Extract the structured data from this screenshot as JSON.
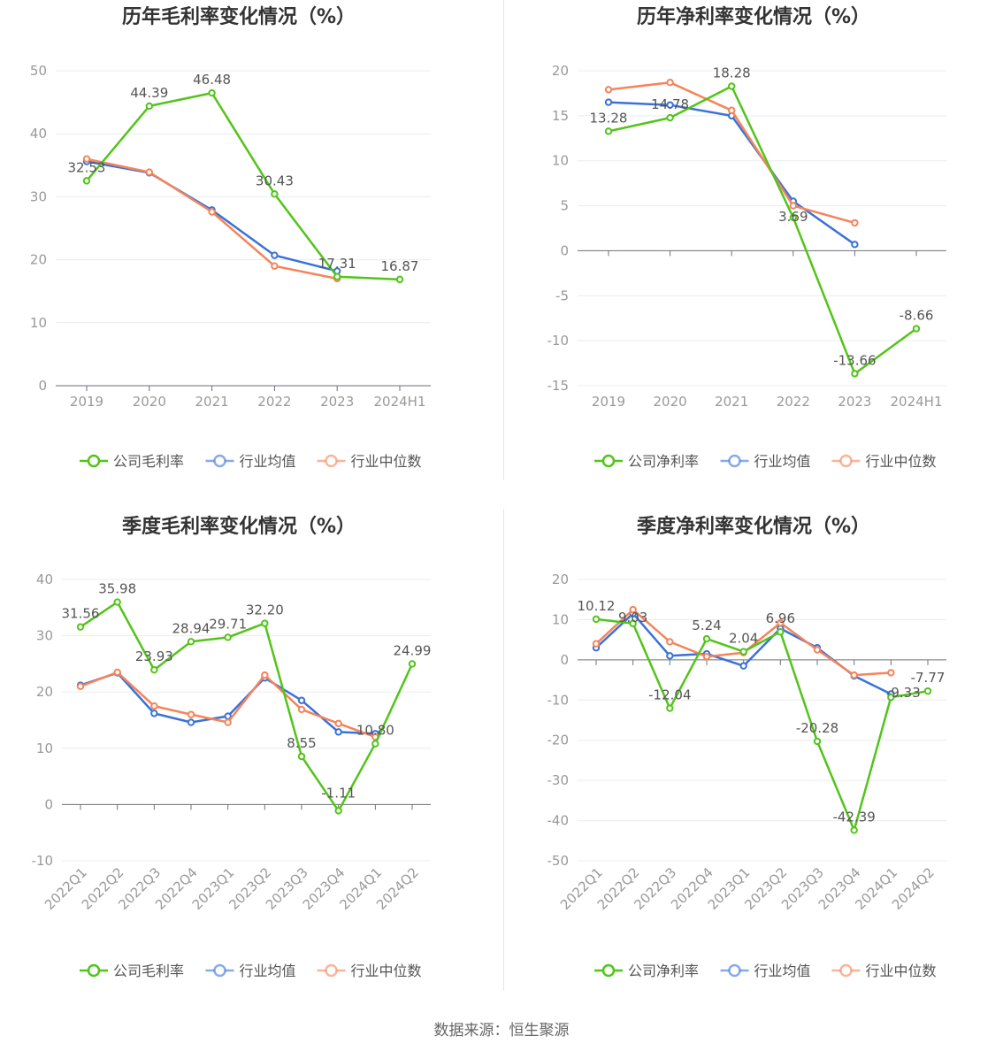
{
  "source_text": "数据来源：恒生聚源",
  "colors": {
    "company": "#52c41a",
    "avg": "#3a72d8",
    "median": "#f5845a"
  },
  "chart_data": [
    {
      "id": "annual-gross",
      "type": "line",
      "title": "历年毛利率变化情况（%）",
      "categories": [
        "2019",
        "2020",
        "2021",
        "2022",
        "2023",
        "2024H1"
      ],
      "ylim": [
        0,
        50
      ],
      "yticks": [
        0,
        10,
        20,
        30,
        40,
        50
      ],
      "rotate_labels": false,
      "series": [
        {
          "name": "公司毛利率",
          "role": "company",
          "values": [
            32.53,
            44.39,
            46.48,
            30.43,
            17.31,
            16.87
          ]
        },
        {
          "name": "行业均值",
          "role": "avg",
          "values": [
            35.6,
            33.8,
            27.9,
            20.7,
            18.2,
            null
          ]
        },
        {
          "name": "行业中位数",
          "role": "median",
          "values": [
            36.0,
            33.9,
            27.6,
            19.0,
            17.0,
            null
          ]
        }
      ],
      "labels": [
        "32.53",
        "44.39",
        "46.48",
        "30.43",
        "17.31",
        "16.87"
      ],
      "legend": [
        "公司毛利率",
        "行业均值",
        "行业中位数"
      ]
    },
    {
      "id": "annual-net",
      "type": "line",
      "title": "历年净利率变化情况（%）",
      "categories": [
        "2019",
        "2020",
        "2021",
        "2022",
        "2023",
        "2024H1"
      ],
      "ylim": [
        -15,
        20
      ],
      "yticks": [
        -15,
        -10,
        -5,
        0,
        5,
        10,
        15,
        20
      ],
      "rotate_labels": false,
      "series": [
        {
          "name": "公司净利率",
          "role": "company",
          "values": [
            13.28,
            14.78,
            18.28,
            3.69,
            -13.66,
            -8.66
          ]
        },
        {
          "name": "行业均值",
          "role": "avg",
          "values": [
            16.5,
            16.2,
            15.0,
            5.5,
            0.7,
            null
          ]
        },
        {
          "name": "行业中位数",
          "role": "median",
          "values": [
            17.9,
            18.7,
            15.6,
            5.0,
            3.1,
            null
          ]
        }
      ],
      "labels": [
        "13.28",
        "14.78",
        "18.28",
        "3.69",
        "-13.66",
        "-8.66"
      ],
      "legend": [
        "公司净利率",
        "行业均值",
        "行业中位数"
      ]
    },
    {
      "id": "quarterly-gross",
      "type": "line",
      "title": "季度毛利率变化情况（%）",
      "categories": [
        "2022Q1",
        "2022Q2",
        "2022Q3",
        "2022Q4",
        "2023Q1",
        "2023Q2",
        "2023Q3",
        "2023Q4",
        "2024Q1",
        "2024Q2"
      ],
      "ylim": [
        -10,
        40
      ],
      "yticks": [
        -10,
        0,
        10,
        20,
        30,
        40
      ],
      "rotate_labels": true,
      "series": [
        {
          "name": "公司毛利率",
          "role": "company",
          "values": [
            31.56,
            35.98,
            23.93,
            28.94,
            29.71,
            32.2,
            8.55,
            -1.11,
            10.8,
            24.99
          ]
        },
        {
          "name": "行业均值",
          "role": "avg",
          "values": [
            21.2,
            23.4,
            16.2,
            14.6,
            15.7,
            22.5,
            18.5,
            12.9,
            12.6,
            null
          ]
        },
        {
          "name": "行业中位数",
          "role": "median",
          "values": [
            21.0,
            23.5,
            17.5,
            16.0,
            14.6,
            23.0,
            16.9,
            14.4,
            12.0,
            null
          ]
        }
      ],
      "labels": [
        "31.56",
        "35.98",
        "23.93",
        "28.94",
        "29.71",
        "32.20",
        "8.55",
        "-1.11",
        "10.80",
        "24.99"
      ],
      "legend": [
        "公司毛利率",
        "行业均值",
        "行业中位数"
      ]
    },
    {
      "id": "quarterly-net",
      "type": "line",
      "title": "季度净利率变化情况（%）",
      "categories": [
        "2022Q1",
        "2022Q2",
        "2022Q3",
        "2022Q4",
        "2023Q1",
        "2023Q2",
        "2023Q3",
        "2023Q4",
        "2024Q1",
        "2024Q2"
      ],
      "ylim": [
        -50,
        20
      ],
      "yticks": [
        -50,
        -40,
        -30,
        -20,
        -10,
        0,
        10,
        20
      ],
      "rotate_labels": true,
      "series": [
        {
          "name": "公司净利率",
          "role": "company",
          "values": [
            10.12,
            9.03,
            -12.04,
            5.24,
            2.04,
            6.96,
            -20.28,
            -42.39,
            -9.33,
            -7.77
          ]
        },
        {
          "name": "行业均值",
          "role": "avg",
          "values": [
            3.0,
            11.5,
            1.0,
            1.5,
            -1.5,
            7.8,
            3.0,
            -4.0,
            -8.5,
            null
          ]
        },
        {
          "name": "行业中位数",
          "role": "median",
          "values": [
            4.0,
            12.5,
            4.5,
            0.8,
            1.8,
            9.2,
            2.5,
            -3.8,
            -3.2,
            null
          ]
        }
      ],
      "labels": [
        "10.12",
        "9.03",
        "-12.04",
        "5.24",
        "2.04",
        "6.96",
        "-20.28",
        "-42.39",
        "-9.33",
        "-7.77"
      ],
      "legend": [
        "公司净利率",
        "行业均值",
        "行业中位数"
      ]
    }
  ]
}
